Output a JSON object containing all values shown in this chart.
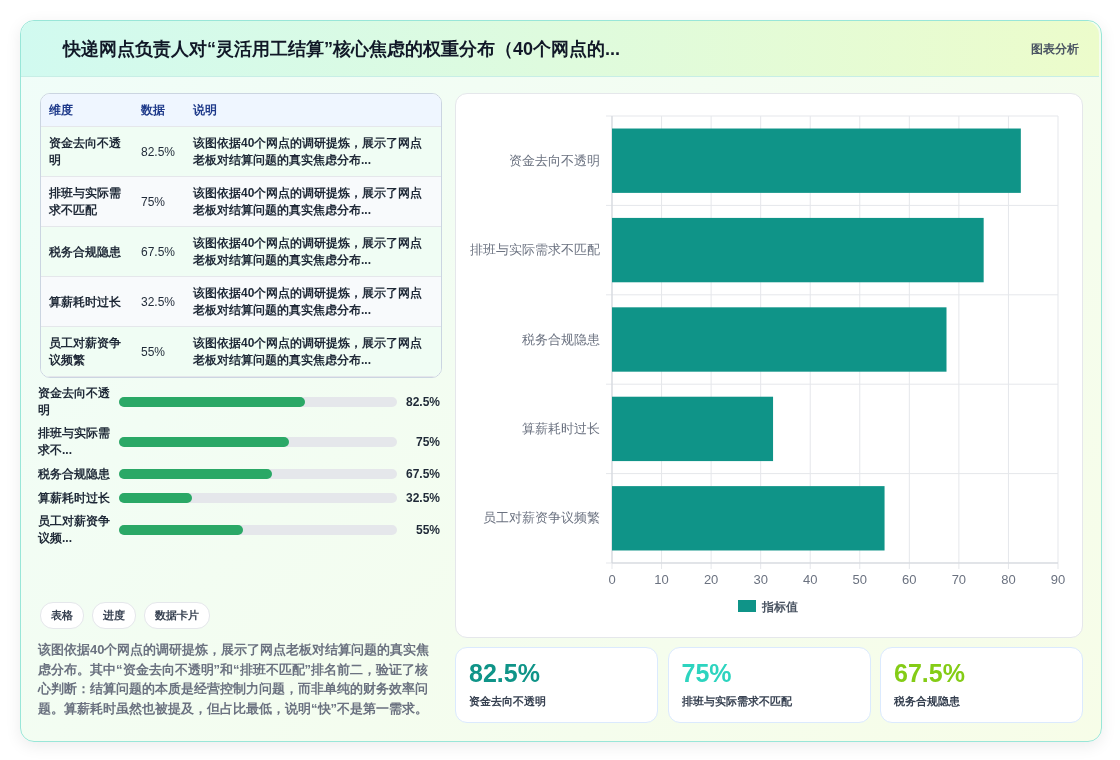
{
  "chart_data": [
    {
      "type": "other",
      "title": "快递网点负责人对“灵活用工结算”核心焦虑的权重分布（40个网点的...",
      "annotations": [
        "图表分析"
      ]
    },
    {
      "type": "other",
      "categories": [
        "资金去向不透明",
        "排班与实际需求不匹配",
        "税务合规隐患",
        "算薪耗时过长",
        "员工对薪资争议频繁"
      ],
      "value_labels": [
        "82.5%",
        "75%",
        "67.5%",
        "32.5%",
        "55%"
      ],
      "annotations": [
        "维度",
        "数据",
        "说明",
        "该图依据40个网点的调研提炼，展示了网点老板对结算问题的真实焦虑分布...",
        "该图依据40个网点的调研提炼，展示了网点老板对结算问题的真实焦虑分布...",
        "该图依据40个网点的调研提炼，展示了网点老板对结算问题的真实焦虑分布...",
        "该图依据40个网点的调研提炼，展示了网点老板对结算问题的真实焦虑分布...",
        "该图依据40个网点的调研提炼，展示了网点老板对结算问题的真实焦虑分布..."
      ]
    },
    {
      "type": "bar",
      "orientation": "horizontal",
      "categories": [
        "资金去向不透明",
        "排班与实际需求不...",
        "税务合规隐患",
        "算薪耗时过长",
        "员工对薪资争议频..."
      ],
      "values": [
        82.5,
        75,
        67.5,
        32.5,
        55
      ],
      "value_labels": [
        "82.5%",
        "75%",
        "67.5%",
        "32.5%",
        "55%"
      ],
      "color": "#2aa866",
      "xlim": [
        0,
        123
      ]
    },
    {
      "type": "other",
      "annotations": [
        "表格",
        "进度",
        "数据卡片"
      ]
    },
    {
      "type": "other",
      "annotations": [
        "该图依据40个网点的调研提炼，展示了网点老板对结算问题的真实焦虑分布。其中“资金去向不透明”和“排班不匹配”排名前二，验证了核心判断：结算问题的本质是经营控制力问题，而非单纯的财务效率问题。算薪耗时虽然也被提及，但占比最低，说明“快”不是第一需求。"
      ]
    },
    {
      "type": "bar",
      "orientation": "horizontal",
      "categories": [
        "资金去向不透明",
        "排班与实际需求不匹配",
        "税务合规隐患",
        "算薪耗时过长",
        "员工对薪资争议频繁"
      ],
      "series": [
        {
          "name": "指标值",
          "color": "#0f9488",
          "values": [
            82.5,
            75,
            67.5,
            32.5,
            55
          ]
        }
      ],
      "xlim": [
        0,
        90
      ],
      "xticks": [
        0,
        10,
        20,
        30,
        40,
        50,
        60,
        70,
        80,
        90
      ],
      "grid": true,
      "legend": "bottom"
    },
    {
      "type": "other",
      "categories": [
        "资金去向不透明",
        "排班与实际需求不匹配",
        "税务合规隐患"
      ],
      "value_labels": [
        "82.5%",
        "75%",
        "67.5%"
      ]
    }
  ]
}
